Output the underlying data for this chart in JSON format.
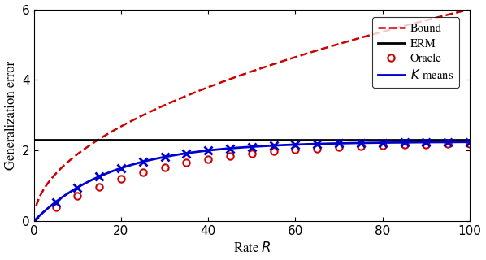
{
  "title": "",
  "xlabel": "Rate $R$",
  "ylabel": "Generalization error",
  "xlim": [
    0,
    100
  ],
  "ylim": [
    0,
    6
  ],
  "yticks": [
    0,
    2,
    4,
    6
  ],
  "xticks": [
    0,
    20,
    40,
    60,
    80,
    100
  ],
  "ermlevel": 2.3,
  "saturation": 2.25,
  "oracle_rate": 0.038,
  "kmeans_rate": 0.055,
  "bound_coeff": 0.6,
  "bound_power": 0.75,
  "oracle_marker_x": [
    5,
    10,
    15,
    20,
    25,
    30,
    35,
    40,
    45,
    50,
    55,
    60,
    65,
    70,
    75,
    80,
    85,
    90,
    95,
    100
  ],
  "kmeans_marker_x": [
    0,
    5,
    10,
    15,
    20,
    25,
    30,
    35,
    40,
    45,
    50,
    55,
    60,
    65,
    70,
    75,
    80,
    85,
    90,
    95,
    100
  ],
  "color_red": "#cc0000",
  "color_blue": "#0000cc",
  "color_black": "#000000",
  "legend_labels": [
    "Bound",
    "ERM",
    "Oracle",
    "$K$-means"
  ],
  "figsize": [
    5.98,
    3.2
  ],
  "dpi": 100
}
